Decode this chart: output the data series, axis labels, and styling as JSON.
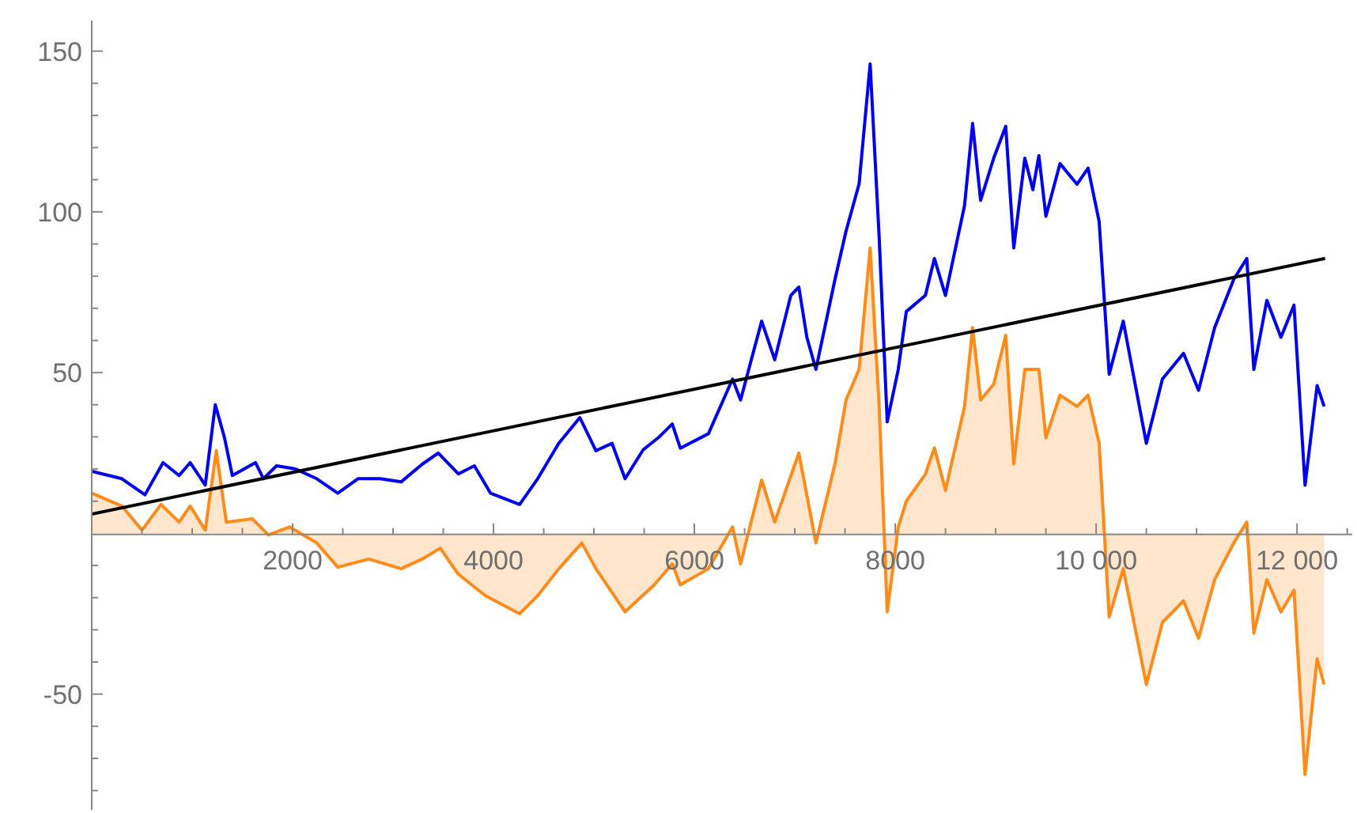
{
  "chart_data": {
    "type": "line",
    "xlim": [
      0,
      12550
    ],
    "ylim": [
      -86,
      159.5
    ],
    "xticks": [
      {
        "value": 500,
        "label": null
      },
      {
        "value": 1000,
        "label": null
      },
      {
        "value": 1500,
        "label": null
      },
      2000,
      {
        "value": 2500,
        "label": null
      },
      {
        "value": 3000,
        "label": null
      },
      {
        "value": 3500,
        "label": null
      },
      4000,
      {
        "value": 4500,
        "label": null
      },
      {
        "value": 5000,
        "label": null
      },
      {
        "value": 5500,
        "label": null
      },
      6000,
      {
        "value": 6500,
        "label": null
      },
      {
        "value": 7000,
        "label": null
      },
      {
        "value": 7500,
        "label": null
      },
      8000,
      {
        "value": 8500,
        "label": null
      },
      {
        "value": 9000,
        "label": null
      },
      {
        "value": 9500,
        "label": null
      },
      {
        "value": 10000,
        "label": "10 000"
      },
      {
        "value": 10500,
        "label": null
      },
      {
        "value": 11000,
        "label": null
      },
      {
        "value": 11500,
        "label": null
      },
      {
        "value": 12000,
        "label": "12 000"
      },
      {
        "value": 12500,
        "label": null
      }
    ],
    "yticks": [
      {
        "value": -80,
        "label": null
      },
      {
        "value": -70,
        "label": null
      },
      {
        "value": -60,
        "label": null
      },
      -50,
      {
        "value": -40,
        "label": null
      },
      {
        "value": -30,
        "label": null
      },
      {
        "value": -20,
        "label": null
      },
      {
        "value": -10,
        "label": null
      },
      {
        "value": 10,
        "label": null
      },
      {
        "value": 20,
        "label": null
      },
      {
        "value": 30,
        "label": null
      },
      {
        "value": 40,
        "label": null
      },
      50,
      {
        "value": 60,
        "label": null
      },
      {
        "value": 70,
        "label": null
      },
      {
        "value": 80,
        "label": null
      },
      {
        "value": 90,
        "label": null
      },
      100,
      {
        "value": 110,
        "label": null
      },
      {
        "value": 120,
        "label": null
      },
      {
        "value": 130,
        "label": null
      },
      {
        "value": 140,
        "label": null
      },
      150
    ],
    "grid": false,
    "legend": false,
    "marker": "none",
    "series": [
      {
        "type": "area",
        "color": "#ff8c1a",
        "x": [
          0,
          300,
          500,
          690,
          870,
          980,
          1130,
          1240,
          1340,
          1600,
          1760,
          1970,
          2240,
          2450,
          2760,
          3080,
          3290,
          3470,
          3650,
          3920,
          4260,
          4440,
          4650,
          4880,
          5020,
          5310,
          5600,
          5780,
          5860,
          6140,
          6380,
          6460,
          6670,
          6800,
          7040,
          7210,
          7400,
          7510,
          7640,
          7750,
          7840,
          7920,
          8030,
          8110,
          8300,
          8390,
          8500,
          8690,
          8770,
          8850,
          8980,
          9100,
          9180,
          9290,
          9430,
          9500,
          9640,
          9810,
          9920,
          10030,
          10130,
          10270,
          10500,
          10660,
          10870,
          11020,
          11180,
          11370,
          11500,
          11570,
          11700,
          11840,
          11970,
          12080,
          12200,
          12270
        ],
        "values": [
          12.5,
          8.5,
          1,
          9,
          3.5,
          8.5,
          1,
          25.7,
          3.5,
          4.5,
          -0.5,
          2,
          -3,
          -10.5,
          -8,
          -11,
          -8,
          -4.6,
          -12.7,
          -19.4,
          -25,
          -19.4,
          -11,
          -3,
          -11,
          -24.4,
          -16,
          -9.5,
          -16,
          -11,
          2,
          -9.5,
          16.6,
          3.5,
          25,
          -3,
          21.6,
          41.5,
          51,
          88.8,
          39.5,
          -24.4,
          2,
          10,
          18.4,
          26.6,
          13.4,
          39.5,
          64,
          41.5,
          46.4,
          61.6,
          21.6,
          51,
          51,
          29.7,
          43,
          39.5,
          43,
          28,
          -26,
          -11,
          -47,
          -27.7,
          -21,
          -32.6,
          -14.4,
          -3,
          3.5,
          -31,
          -14.4,
          -24.4,
          -17.7,
          -75,
          -39,
          -47
        ]
      },
      {
        "color": "#0000ee",
        "x": [
          0,
          300,
          530,
          710,
          870,
          980,
          1130,
          1230,
          1320,
          1400,
          1630,
          1710,
          1840,
          2030,
          2240,
          2450,
          2650,
          2870,
          3080,
          3290,
          3450,
          3650,
          3810,
          3970,
          4260,
          4440,
          4650,
          4860,
          5020,
          5180,
          5310,
          5490,
          5650,
          5780,
          5860,
          6140,
          6380,
          6460,
          6670,
          6800,
          6960,
          7040,
          7120,
          7210,
          7400,
          7510,
          7640,
          7750,
          7840,
          7920,
          8030,
          8110,
          8300,
          8390,
          8500,
          8690,
          8770,
          8850,
          8980,
          9100,
          9180,
          9290,
          9370,
          9430,
          9500,
          9640,
          9810,
          9920,
          10030,
          10130,
          10270,
          10500,
          10660,
          10870,
          11020,
          11180,
          11370,
          11500,
          11570,
          11700,
          11840,
          11970,
          12080,
          12200,
          12270
        ],
        "values": [
          19.3,
          17,
          12,
          22,
          18,
          22,
          15,
          40,
          30,
          18,
          22,
          17,
          21,
          20,
          17,
          12.5,
          17,
          17,
          16,
          21.5,
          25,
          18.5,
          21,
          12.5,
          9,
          17,
          28,
          36,
          25.7,
          28,
          17,
          26,
          30,
          34,
          26.5,
          31,
          48,
          41.5,
          66,
          54,
          74,
          76.6,
          61,
          51,
          79,
          94,
          108.7,
          146,
          92,
          34.7,
          51,
          69,
          74,
          85.5,
          74,
          102,
          127.5,
          103.6,
          116.7,
          126.6,
          88.8,
          116.7,
          106.9,
          117.5,
          98.6,
          115,
          108.6,
          113.6,
          97,
          49.5,
          66,
          28,
          48,
          56,
          44.5,
          64,
          79,
          85.5,
          51,
          72.5,
          61,
          71,
          15,
          46,
          39.5
        ]
      },
      {
        "color": "#000000",
        "x": [
          0,
          12280
        ],
        "values": [
          6,
          85.5
        ]
      }
    ]
  }
}
